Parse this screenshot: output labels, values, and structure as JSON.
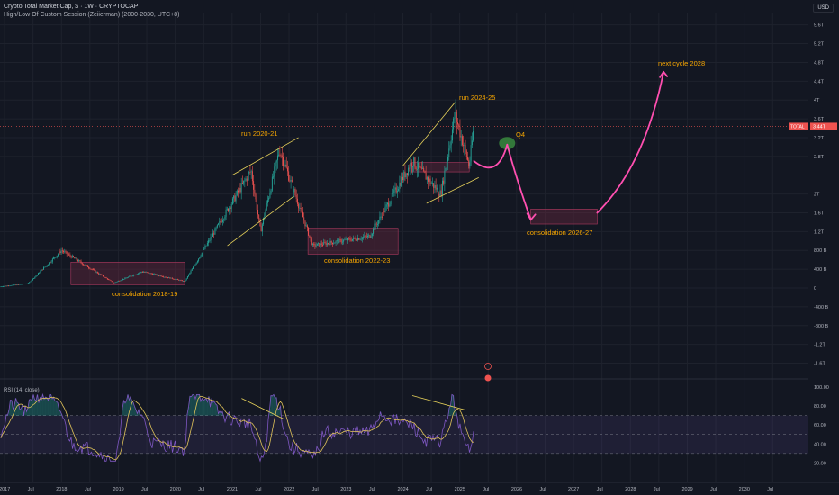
{
  "header": {
    "title": "Crypto Total Market Cap, $ · 1W · CRYPTOCAP",
    "indicator": "High/Low Of Custom Session (Zeiierman) (2000-2030, UTC+8)"
  },
  "currency_label": "USD",
  "price_axis": {
    "ticks": [
      "5.6T",
      "5.2T",
      "4.8T",
      "4.4T",
      "4T",
      "3.6T",
      "3.2T",
      "2.8T",
      "2T",
      "1.6T",
      "1.2T",
      "800 B",
      "400 B",
      "0",
      "-400 B",
      "-800 B",
      "-1.2T",
      "-1.6T"
    ],
    "current": "3.44T",
    "current_tag": "TOTAL"
  },
  "rsi": {
    "title": "RSI (14, close)",
    "ticks": [
      "100.00",
      "80.00",
      "60.00",
      "40.00",
      "20.00"
    ]
  },
  "time_axis": [
    "2017",
    "Jul",
    "2018",
    "Jul",
    "2019",
    "Jul",
    "2020",
    "Jul",
    "2021",
    "Jul",
    "2022",
    "Jul",
    "2023",
    "Jul",
    "2024",
    "Jul",
    "2025",
    "Jul",
    "2026",
    "Jul",
    "2027",
    "Jul",
    "2028",
    "Jul",
    "2029",
    "Jul",
    "2030",
    "Jul"
  ],
  "annotations": {
    "run1": "run 2020-21",
    "run2": "run 2024-25",
    "cons1": "consolidation 2018-19",
    "cons2": "consolidation 2022-23",
    "cons3": "consolidation 2026-27",
    "q4": "Q4",
    "next": "next cycle 2028"
  },
  "colors": {
    "background": "#131722",
    "up": "#26a69a",
    "down": "#ef5350",
    "annotation": "#f7a600",
    "projection": "#ff4fb0",
    "rsi_line": "#7e57c2",
    "rsi_ma": "#e0c35a",
    "zone": "#7a2a45",
    "trendline": "#e6d15a"
  },
  "chart_data": {
    "type": "candlestick",
    "series_units": "USD (trillions)",
    "x": [
      "2017",
      "2018",
      "2019",
      "2020",
      "2021",
      "2022",
      "2023",
      "2024",
      "2025"
    ],
    "close_approx": [
      0.02,
      0.15,
      0.13,
      0.19,
      0.75,
      0.8,
      1.7,
      1.65,
      3.44
    ],
    "key_points": [
      {
        "date": "2018-01",
        "value": 0.8
      },
      {
        "date": "2018-12",
        "value": 0.11
      },
      {
        "date": "2019-06",
        "value": 0.35
      },
      {
        "date": "2020-03",
        "value": 0.14
      },
      {
        "date": "2021-05",
        "value": 2.5
      },
      {
        "date": "2021-07",
        "value": 1.2
      },
      {
        "date": "2021-11",
        "value": 2.95
      },
      {
        "date": "2022-06",
        "value": 0.9
      },
      {
        "date": "2023-06",
        "value": 1.1
      },
      {
        "date": "2024-03",
        "value": 2.7
      },
      {
        "date": "2024-09",
        "value": 2.0
      },
      {
        "date": "2024-12",
        "value": 3.7
      },
      {
        "date": "2025-03",
        "value": 2.6
      },
      {
        "date": "2025-04",
        "value": 3.44
      }
    ],
    "ylim": [
      -1.6,
      5.8
    ],
    "xlim": [
      "2016-11",
      "2030-11"
    ]
  }
}
